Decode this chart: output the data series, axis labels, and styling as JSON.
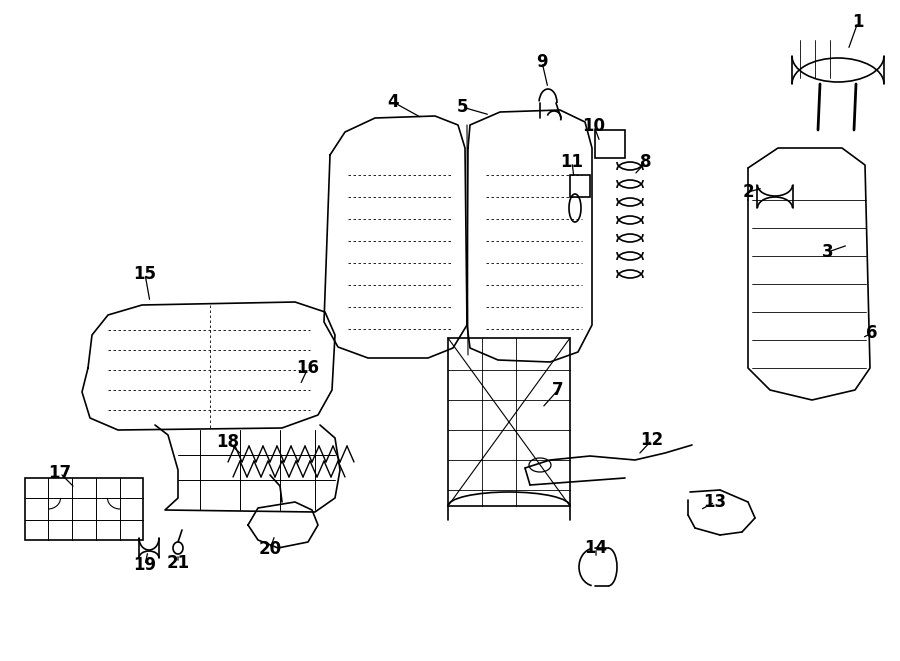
{
  "bg_color": "#ffffff",
  "line_color": "#000000",
  "fig_width": 9.0,
  "fig_height": 6.61,
  "dpi": 100,
  "callouts": [
    [
      1,
      858,
      22,
      848,
      50
    ],
    [
      2,
      748,
      192,
      763,
      188
    ],
    [
      3,
      828,
      252,
      848,
      245
    ],
    [
      4,
      393,
      102,
      422,
      118
    ],
    [
      5,
      462,
      107,
      490,
      115
    ],
    [
      6,
      872,
      333,
      862,
      338
    ],
    [
      7,
      558,
      390,
      542,
      408
    ],
    [
      8,
      646,
      162,
      634,
      175
    ],
    [
      9,
      542,
      62,
      548,
      88
    ],
    [
      10,
      594,
      126,
      600,
      142
    ],
    [
      11,
      572,
      162,
      574,
      178
    ],
    [
      12,
      652,
      440,
      638,
      455
    ],
    [
      13,
      715,
      502,
      700,
      510
    ],
    [
      14,
      596,
      548,
      596,
      558
    ],
    [
      15,
      145,
      274,
      150,
      302
    ],
    [
      16,
      308,
      368,
      300,
      385
    ],
    [
      17,
      60,
      473,
      75,
      488
    ],
    [
      18,
      228,
      442,
      242,
      455
    ],
    [
      19,
      145,
      565,
      148,
      551
    ],
    [
      20,
      270,
      549,
      275,
      535
    ],
    [
      21,
      178,
      563,
      178,
      554
    ]
  ]
}
